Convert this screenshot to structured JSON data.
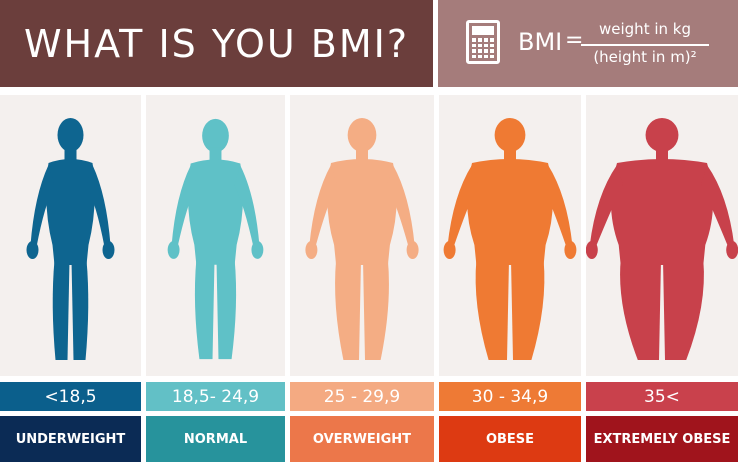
{
  "header": {
    "title": "WHAT IS YOU BMI?",
    "formula_lhs": "BMI",
    "formula_eq": "=",
    "numerator": "weight in kg",
    "denominator": "(height in m)²",
    "icon": "calculator-icon"
  },
  "categories": [
    {
      "range": "<18,5",
      "label": "UNDERWEIGHT",
      "body_color": "#0e6590",
      "range_color": "#0b5f8c",
      "label_color": "#0b2b55"
    },
    {
      "range": "18,5- 24,9",
      "label": "NORMAL",
      "body_color": "#5fc1c7",
      "range_color": "#62c0c6",
      "label_color": "#27939c"
    },
    {
      "range": "25 - 29,9",
      "label": "OVERWEIGHT",
      "body_color": "#f4ad84",
      "range_color": "#f4aa82",
      "label_color": "#ec774a"
    },
    {
      "range": "30 - 34,9",
      "label": "OBESE",
      "body_color": "#ef7a33",
      "range_color": "#ee7a35",
      "label_color": "#dd3a12"
    },
    {
      "range": "35<",
      "label": "EXTREMELY OBESE",
      "body_color": "#c8414b",
      "range_color": "#c9414c",
      "label_color": "#a0141c"
    }
  ]
}
